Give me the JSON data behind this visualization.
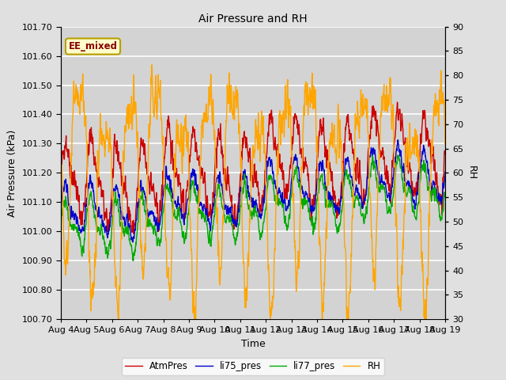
{
  "title": "Air Pressure and RH",
  "xlabel": "Time",
  "ylabel_left": "Air Pressure (kPa)",
  "ylabel_right": "RH",
  "ylim_left": [
    100.7,
    101.7
  ],
  "ylim_right": [
    30,
    90
  ],
  "yticks_left": [
    100.7,
    100.8,
    100.9,
    101.0,
    101.1,
    101.2,
    101.3,
    101.4,
    101.5,
    101.6,
    101.7
  ],
  "yticks_right": [
    30,
    35,
    40,
    45,
    50,
    55,
    60,
    65,
    70,
    75,
    80,
    85,
    90
  ],
  "xtick_labels": [
    "Aug 4",
    "Aug 5",
    "Aug 6",
    "Aug 7",
    "Aug 8",
    "Aug 9",
    "Aug 10",
    "Aug 11",
    "Aug 12",
    "Aug 13",
    "Aug 14",
    "Aug 15",
    "Aug 16",
    "Aug 17",
    "Aug 18",
    "Aug 19"
  ],
  "annotation_text": "EE_mixed",
  "annotation_color": "#8B0000",
  "annotation_bg": "#FFFFCC",
  "annotation_border": "#B8A000",
  "colors": {
    "AtmPres": "#CC0000",
    "li75_pres": "#0000CC",
    "li77_pres": "#00AA00",
    "RH": "#FFA500"
  },
  "legend_labels": [
    "AtmPres",
    "li75_pres",
    "li77_pres",
    "RH"
  ],
  "bg_color": "#E0E0E0",
  "plot_bg_color": "#D3D3D3",
  "grid_color": "#FFFFFF",
  "n_points": 1500,
  "seed": 42
}
